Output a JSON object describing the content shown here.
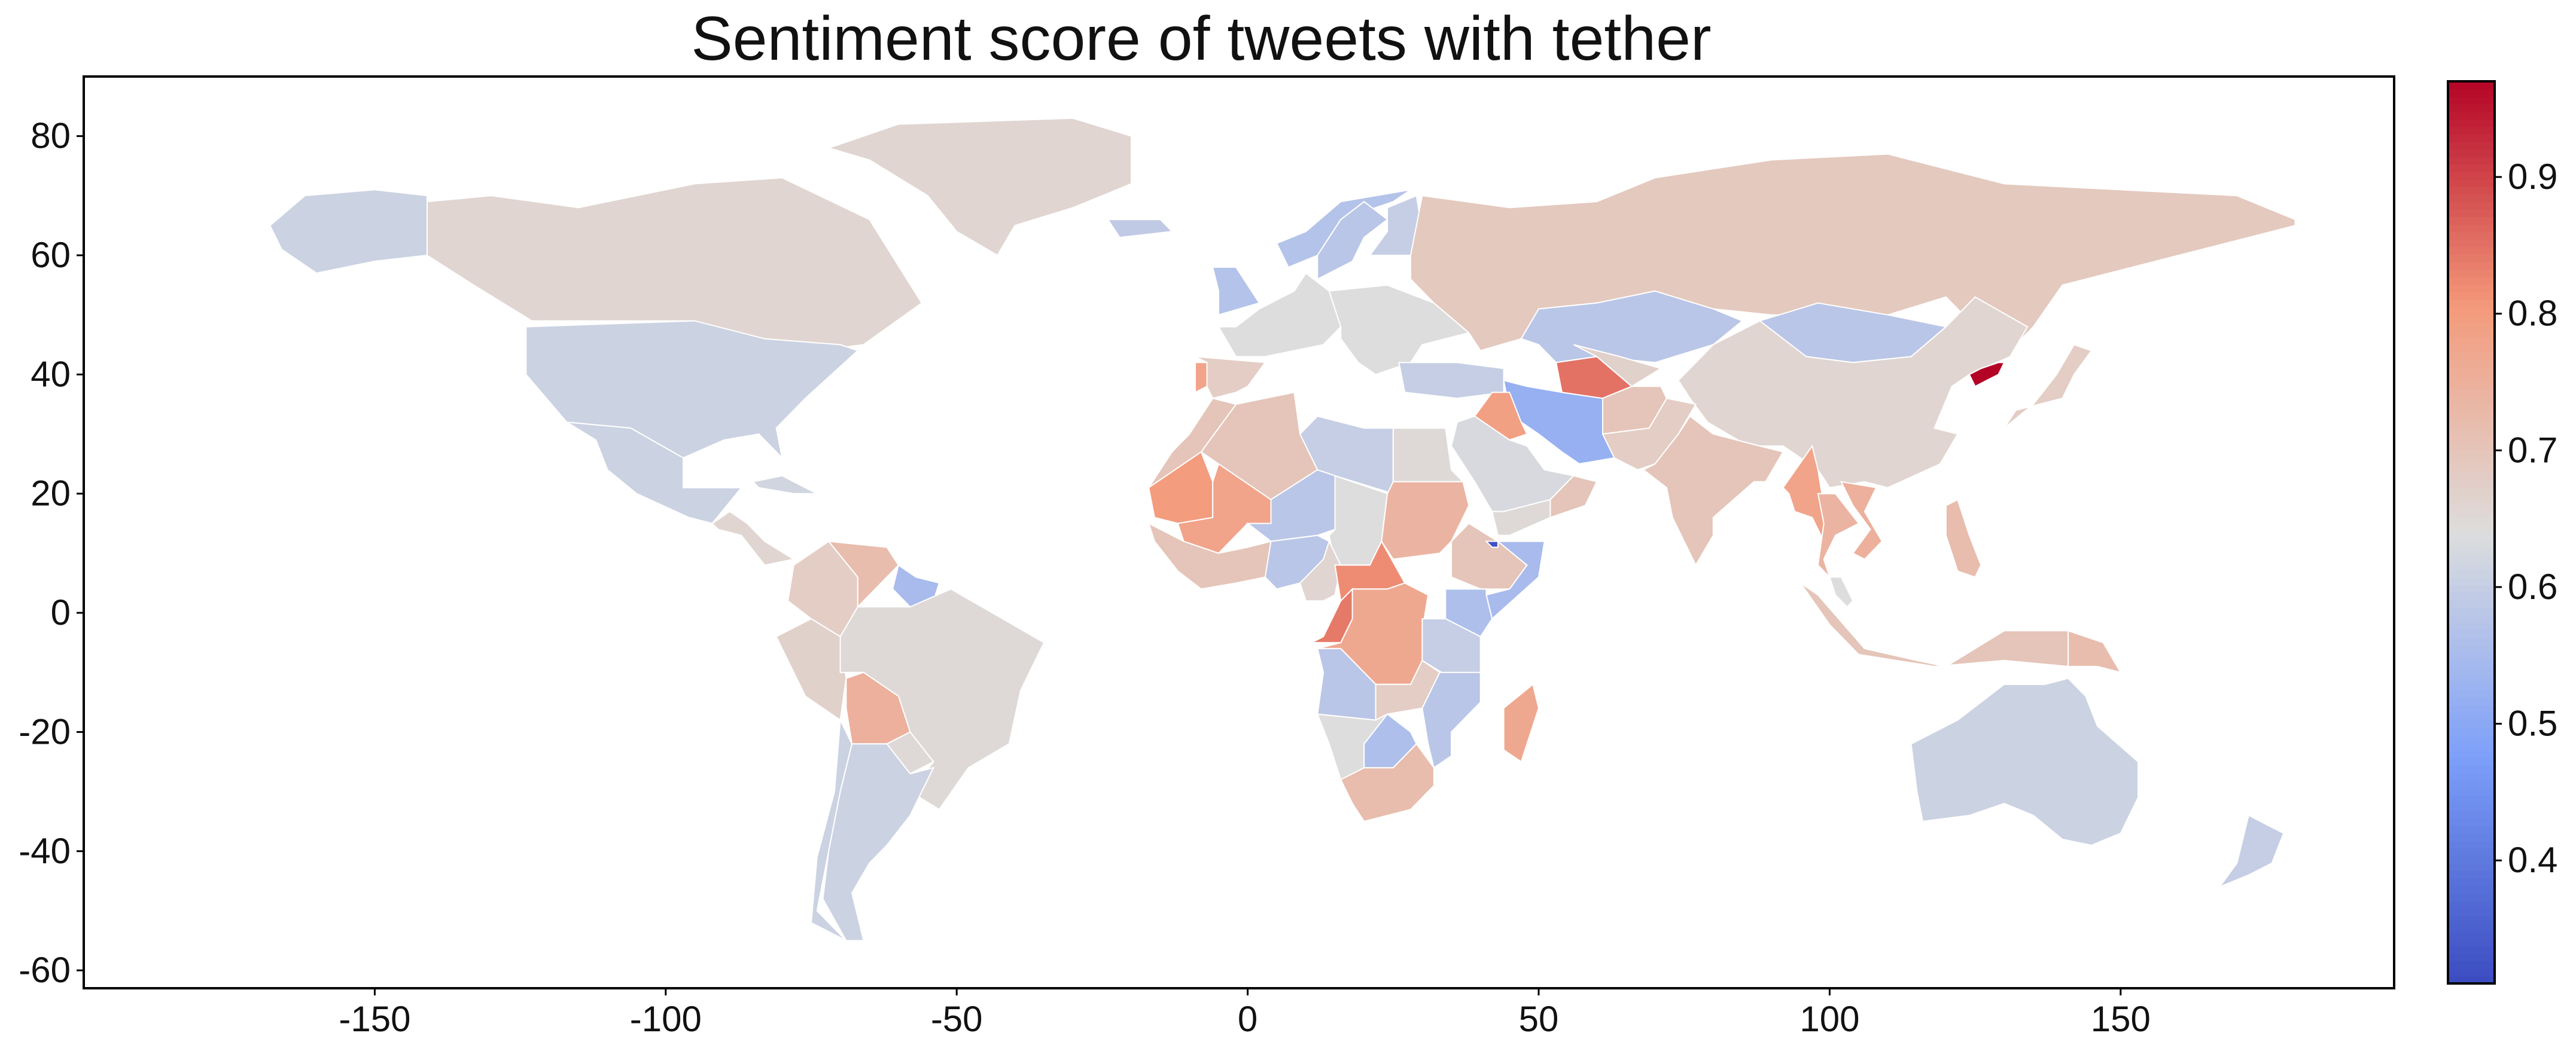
{
  "title": "Sentiment score of tweets with tether",
  "chart_data": {
    "type": "heatmap",
    "subtype": "choropleth-world-map",
    "title": "Sentiment score of tweets with tether",
    "xlabel": "",
    "ylabel": "",
    "xlim": [
      -200,
      197
    ],
    "ylim": [
      -63,
      90
    ],
    "x_ticks": [
      -150,
      -100,
      -50,
      0,
      50,
      100,
      150
    ],
    "x_tick_labels": [
      "-150",
      "-100",
      "-50",
      "0",
      "50",
      "100",
      "150"
    ],
    "y_ticks": [
      -60,
      -40,
      -20,
      0,
      20,
      40,
      60,
      80
    ],
    "y_tick_labels": [
      "-60",
      "-40",
      "-20",
      "0",
      "20",
      "40",
      "60",
      "80"
    ],
    "grid": false,
    "colormap": "coolwarm",
    "colorbar": {
      "range": [
        0.31,
        0.97
      ],
      "ticks": [
        0.4,
        0.5,
        0.6,
        0.7,
        0.8,
        0.9
      ],
      "tick_labels": [
        "0.4",
        "0.5",
        "0.6",
        "0.7",
        "0.8",
        "0.9"
      ],
      "placement": "right"
    },
    "regions": [
      {
        "name": "Canada",
        "value": 0.66
      },
      {
        "name": "Alaska",
        "value": 0.61
      },
      {
        "name": "United States",
        "value": 0.61
      },
      {
        "name": "Mexico",
        "value": 0.61
      },
      {
        "name": "Greenland",
        "value": 0.66
      },
      {
        "name": "Central America",
        "value": 0.66
      },
      {
        "name": "Cuba",
        "value": 0.62
      },
      {
        "name": "Colombia",
        "value": 0.68
      },
      {
        "name": "Venezuela",
        "value": 0.72
      },
      {
        "name": "Guyana",
        "value": 0.55
      },
      {
        "name": "Peru",
        "value": 0.67
      },
      {
        "name": "Brazil",
        "value": 0.65
      },
      {
        "name": "Bolivia",
        "value": 0.75
      },
      {
        "name": "Paraguay",
        "value": 0.65
      },
      {
        "name": "Chile",
        "value": 0.61
      },
      {
        "name": "Argentina",
        "value": 0.61
      },
      {
        "name": "Iceland",
        "value": 0.59
      },
      {
        "name": "United Kingdom",
        "value": 0.57
      },
      {
        "name": "Norway",
        "value": 0.57
      },
      {
        "name": "Sweden",
        "value": 0.58
      },
      {
        "name": "Finland",
        "value": 0.6
      },
      {
        "name": "Western Europe",
        "value": 0.64
      },
      {
        "name": "Spain",
        "value": 0.68
      },
      {
        "name": "Portugal",
        "value": 0.78
      },
      {
        "name": "Eastern Europe",
        "value": 0.64
      },
      {
        "name": "Turkey",
        "value": 0.6
      },
      {
        "name": "Russia",
        "value": 0.69
      },
      {
        "name": "Kazakhstan",
        "value": 0.58
      },
      {
        "name": "Mongolia",
        "value": 0.58
      },
      {
        "name": "China",
        "value": 0.66
      },
      {
        "name": "Iran",
        "value": 0.52
      },
      {
        "name": "Turkmenistan",
        "value": 0.85
      },
      {
        "name": "Uzbekistan",
        "value": 0.67
      },
      {
        "name": "Afghanistan",
        "value": 0.7
      },
      {
        "name": "Pakistan",
        "value": 0.68
      },
      {
        "name": "Iraq",
        "value": 0.79
      },
      {
        "name": "Saudi Arabia",
        "value": 0.63
      },
      {
        "name": "Yemen",
        "value": 0.65
      },
      {
        "name": "Oman",
        "value": 0.7
      },
      {
        "name": "India",
        "value": 0.7
      },
      {
        "name": "Myanmar",
        "value": 0.78
      },
      {
        "name": "Thailand",
        "value": 0.74
      },
      {
        "name": "Vietnam",
        "value": 0.75
      },
      {
        "name": "Indonesia",
        "value": 0.7
      },
      {
        "name": "Philippines",
        "value": 0.72
      },
      {
        "name": "Malaysia",
        "value": 0.64
      },
      {
        "name": "Japan",
        "value": 0.68
      },
      {
        "name": "North Korea",
        "value": 0.97
      },
      {
        "name": "Australia",
        "value": 0.61
      },
      {
        "name": "New Zealand",
        "value": 0.6
      },
      {
        "name": "Papua New Guinea",
        "value": 0.72
      },
      {
        "name": "Mauritania",
        "value": 0.8
      },
      {
        "name": "Mali",
        "value": 0.78
      },
      {
        "name": "Algeria",
        "value": 0.7
      },
      {
        "name": "Morocco",
        "value": 0.7
      },
      {
        "name": "Libya",
        "value": 0.6
      },
      {
        "name": "Egypt",
        "value": 0.65
      },
      {
        "name": "Niger",
        "value": 0.58
      },
      {
        "name": "Chad",
        "value": 0.64
      },
      {
        "name": "Sudan",
        "value": 0.74
      },
      {
        "name": "Ethiopia",
        "value": 0.7
      },
      {
        "name": "Somalia",
        "value": 0.55
      },
      {
        "name": "Kenya",
        "value": 0.56
      },
      {
        "name": "Nigeria",
        "value": 0.58
      },
      {
        "name": "West Africa coast",
        "value": 0.7
      },
      {
        "name": "Cameroon",
        "value": 0.66
      },
      {
        "name": "Central African Republic",
        "value": 0.82
      },
      {
        "name": "Congo",
        "value": 0.84
      },
      {
        "name": "DR Congo",
        "value": 0.77
      },
      {
        "name": "Tanzania",
        "value": 0.6
      },
      {
        "name": "Angola",
        "value": 0.58
      },
      {
        "name": "Zambia",
        "value": 0.68
      },
      {
        "name": "Namibia",
        "value": 0.64
      },
      {
        "name": "Botswana",
        "value": 0.56
      },
      {
        "name": "Mozambique",
        "value": 0.58
      },
      {
        "name": "South Africa",
        "value": 0.72
      },
      {
        "name": "Madagascar",
        "value": 0.77
      },
      {
        "name": "Djibouti",
        "value": 0.32
      }
    ]
  }
}
